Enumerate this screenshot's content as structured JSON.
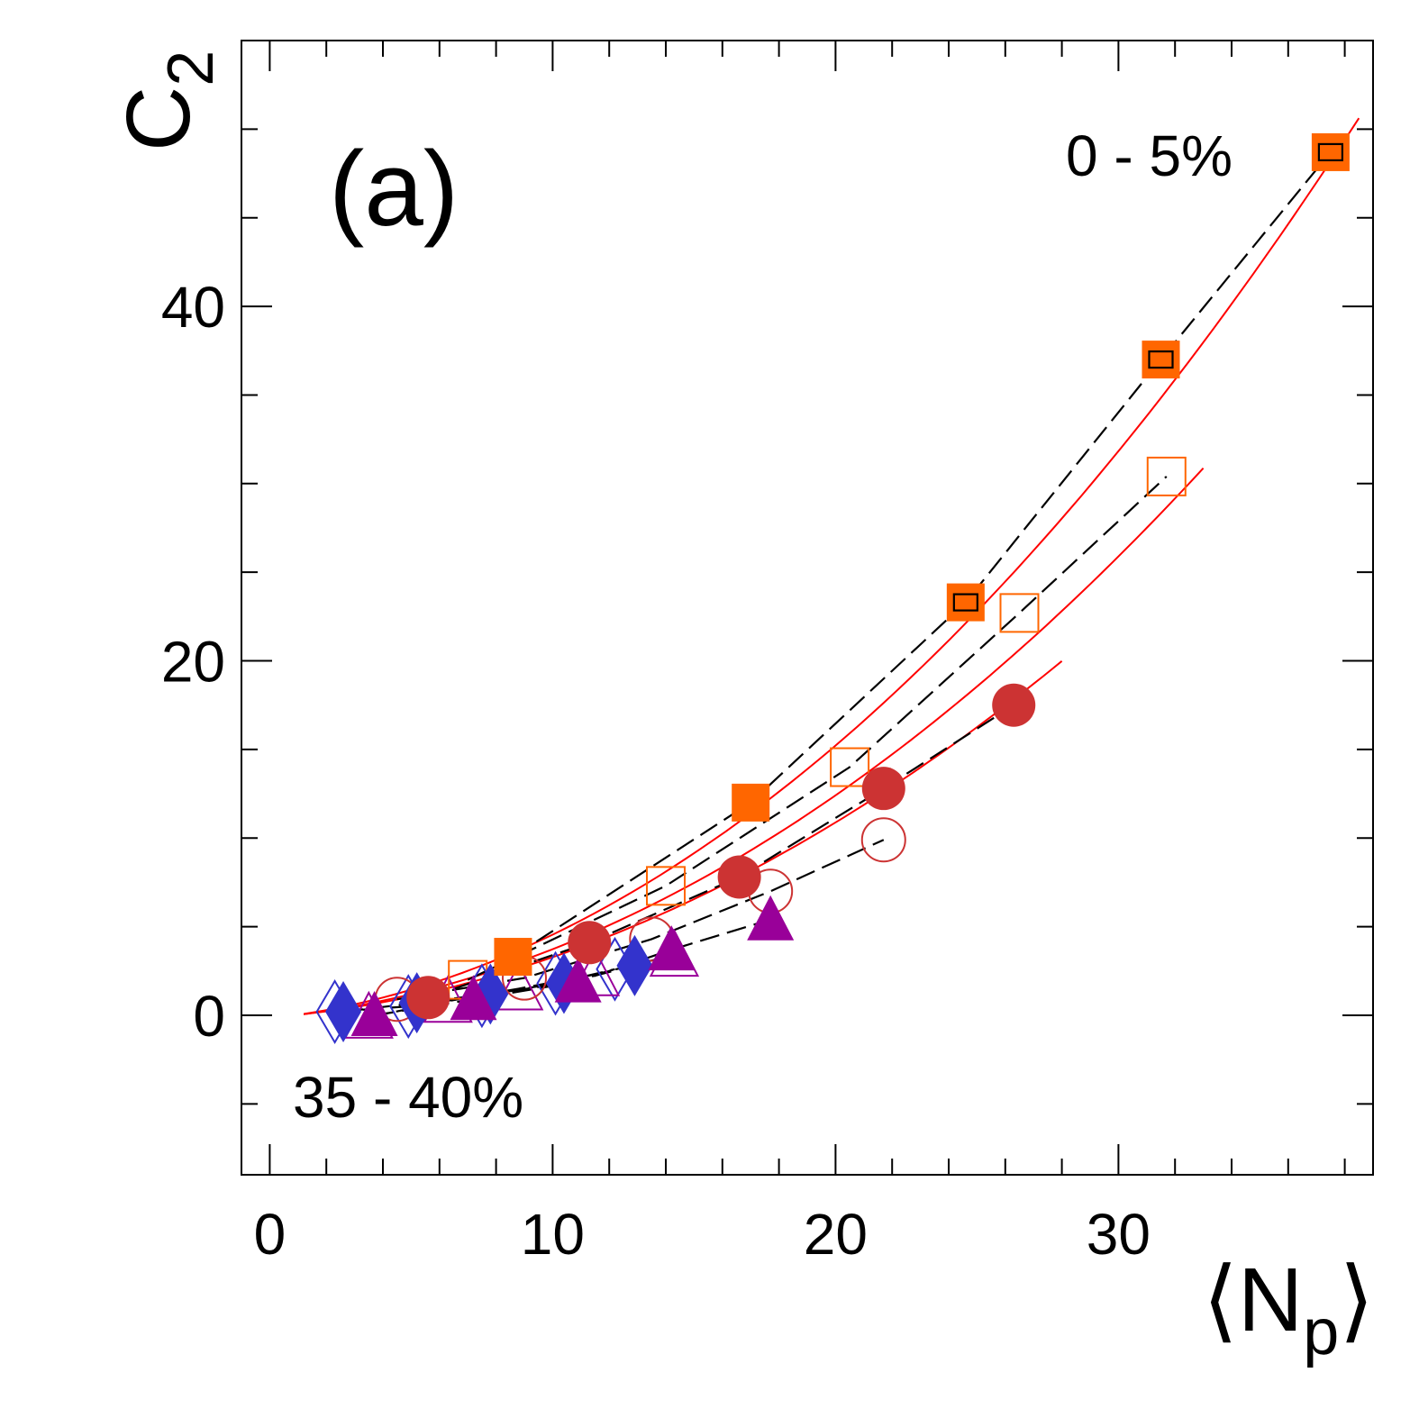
{
  "chart_data": {
    "type": "scatter",
    "panel_label": "(a)",
    "xlabel": "⟨N",
    "xlabel_sub": "p",
    "xlabel_close": "⟩",
    "ylabel": "C",
    "ylabel_sub": "2",
    "xlim": [
      -1,
      39
    ],
    "ylim": [
      -9,
      55
    ],
    "x_ticks": [
      0,
      10,
      20,
      30
    ],
    "y_ticks": [
      0,
      20,
      40
    ],
    "x_tick_labels": [
      "0",
      "10",
      "20",
      "30"
    ],
    "y_tick_labels": [
      "0",
      "20",
      "40"
    ],
    "annotations": [
      "0 - 5%",
      "35 - 40%"
    ],
    "colors": {
      "orange": "#ff6600",
      "red": "#cc3333",
      "purple": "#990099",
      "blue": "#3333cc",
      "fit_red": "#ff0000",
      "fit_black": "#000000"
    },
    "series": [
      {
        "name": "open diamonds",
        "marker": "diamond",
        "filled": false,
        "color": "#3333cc",
        "x": [
          2.3,
          4.9,
          7.5,
          10.1,
          12.2
        ],
        "y": [
          0.2,
          0.5,
          1.1,
          1.8,
          2.6
        ]
      },
      {
        "name": "open triangles",
        "marker": "triangle",
        "filled": false,
        "color": "#990099",
        "x": [
          3.5,
          6.3,
          8.8,
          11.5,
          14.3
        ],
        "y": [
          -0.1,
          0.8,
          1.5,
          2.3,
          3.4
        ]
      },
      {
        "name": "open circles",
        "marker": "circle",
        "filled": false,
        "color": "#cc3333",
        "x": [
          4.5,
          9.0,
          13.5,
          17.7,
          21.7
        ],
        "y": [
          0.9,
          2.1,
          4.3,
          7.0,
          9.9
        ]
      },
      {
        "name": "open squares",
        "marker": "square",
        "filled": false,
        "color": "#ff6600",
        "x": [
          7.0,
          14.0,
          20.5,
          26.5,
          31.7
        ],
        "y": [
          2.0,
          7.3,
          14.0,
          22.7,
          30.4
        ]
      },
      {
        "name": "filled diamonds",
        "marker": "diamond",
        "filled": true,
        "color": "#3333cc",
        "x": [
          2.6,
          5.2,
          7.8,
          10.4,
          12.9
        ],
        "y": [
          0.2,
          0.7,
          1.2,
          1.8,
          2.8
        ]
      },
      {
        "name": "filled triangles",
        "marker": "triangle",
        "filled": true,
        "color": "#990099",
        "x": [
          3.7,
          7.2,
          10.9,
          14.2,
          17.7
        ],
        "y": [
          0.0,
          0.9,
          1.9,
          3.7,
          5.4
        ]
      },
      {
        "name": "filled circles",
        "marker": "circle",
        "filled": true,
        "color": "#cc3333",
        "x": [
          5.6,
          11.3,
          16.6,
          21.7,
          26.3
        ],
        "y": [
          1.0,
          4.1,
          7.8,
          12.8,
          17.5
        ]
      },
      {
        "name": "filled squares",
        "marker": "square",
        "filled": true,
        "color": "#ff6600",
        "x": [
          8.6,
          17.0,
          24.6,
          31.5,
          37.5
        ],
        "y": [
          3.3,
          12.0,
          23.3,
          37.0,
          48.7
        ]
      }
    ],
    "fits": [
      {
        "color": "#ff0000",
        "style": "solid",
        "coef": [
          0.0297,
          0.176,
          -0.18
        ],
        "x_range": [
          1.2,
          38.5
        ]
      },
      {
        "color": "#ff0000",
        "style": "solid",
        "coef": [
          0.024,
          0.148,
          -0.15
        ],
        "x_range": [
          1.2,
          33.0
        ]
      },
      {
        "color": "#ff0000",
        "style": "solid",
        "coef": [
          0.021,
          0.13,
          -0.12
        ],
        "x_range": [
          1.2,
          28.0
        ]
      },
      {
        "color": "#000000",
        "style": "dashed",
        "points": [
          [
            8.6,
            3.3
          ],
          [
            17.0,
            12.0
          ],
          [
            24.6,
            23.3
          ],
          [
            31.5,
            37.0
          ],
          [
            37.5,
            48.7
          ]
        ]
      },
      {
        "color": "#000000",
        "style": "dashed",
        "points": [
          [
            7.0,
            2.0
          ],
          [
            14.0,
            7.3
          ],
          [
            20.5,
            14.0
          ],
          [
            26.5,
            22.7
          ],
          [
            31.7,
            30.4
          ]
        ]
      },
      {
        "color": "#000000",
        "style": "dashed",
        "points": [
          [
            5.6,
            1.0
          ],
          [
            11.3,
            4.1
          ],
          [
            16.6,
            7.8
          ],
          [
            21.7,
            12.8
          ],
          [
            26.3,
            17.5
          ]
        ]
      },
      {
        "color": "#000000",
        "style": "dashed",
        "points": [
          [
            4.5,
            0.9
          ],
          [
            9.0,
            2.1
          ],
          [
            13.5,
            4.3
          ],
          [
            17.7,
            7.0
          ],
          [
            21.7,
            9.9
          ]
        ]
      },
      {
        "color": "#000000",
        "style": "dashed",
        "points": [
          [
            3.7,
            0.0
          ],
          [
            7.2,
            0.9
          ],
          [
            10.9,
            1.9
          ],
          [
            14.2,
            3.7
          ],
          [
            17.7,
            5.4
          ]
        ]
      },
      {
        "color": "#000000",
        "style": "dashed",
        "points": [
          [
            3.5,
            -0.1
          ],
          [
            6.3,
            0.8
          ],
          [
            8.8,
            1.5
          ],
          [
            11.5,
            2.3
          ],
          [
            14.3,
            3.4
          ]
        ]
      },
      {
        "color": "#000000",
        "style": "dashed",
        "points": [
          [
            2.6,
            0.2
          ],
          [
            5.2,
            0.7
          ],
          [
            7.8,
            1.2
          ],
          [
            10.4,
            1.8
          ],
          [
            12.9,
            2.8
          ]
        ]
      },
      {
        "color": "#000000",
        "style": "dashed",
        "points": [
          [
            2.3,
            0.2
          ],
          [
            4.9,
            0.5
          ],
          [
            7.5,
            1.1
          ],
          [
            10.1,
            1.8
          ],
          [
            12.2,
            2.6
          ]
        ]
      }
    ]
  }
}
